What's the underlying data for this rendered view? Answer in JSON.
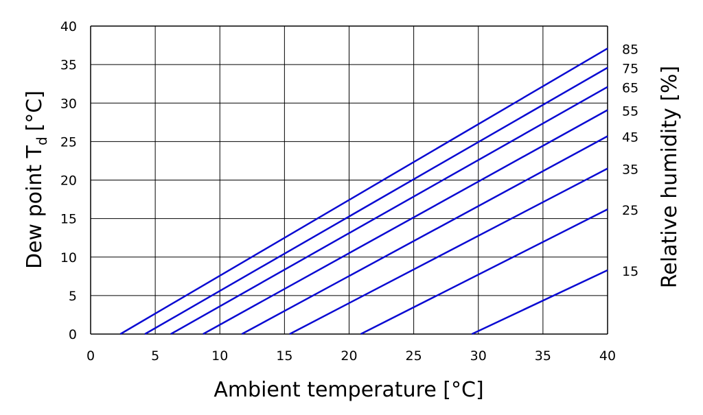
{
  "chart_data": {
    "type": "line",
    "title": "",
    "xlabel": "Ambient temperature [°C]",
    "ylabel": "Dew point T",
    "ylabel_subscript": "d",
    "ylabel_unit": "[°C]",
    "y2label": "Relative humidity [%]",
    "xlim": [
      0,
      40
    ],
    "ylim": [
      0,
      40
    ],
    "xticks": [
      "0",
      "5",
      "10",
      "15",
      "20",
      "25",
      "30",
      "35",
      "40"
    ],
    "yticks": [
      "0",
      "5",
      "10",
      "15",
      "20",
      "25",
      "30",
      "35",
      "40"
    ],
    "grid": true,
    "line_color": "#0a0ad2",
    "series": [
      {
        "name": "85",
        "x": [
          2.3,
          40
        ],
        "y": [
          0,
          37.1
        ]
      },
      {
        "name": "75",
        "x": [
          4.2,
          40
        ],
        "y": [
          0,
          34.6
        ]
      },
      {
        "name": "65",
        "x": [
          6.2,
          40
        ],
        "y": [
          0,
          32.1
        ]
      },
      {
        "name": "55",
        "x": [
          8.7,
          40
        ],
        "y": [
          0,
          29.1
        ]
      },
      {
        "name": "45",
        "x": [
          11.7,
          40
        ],
        "y": [
          0,
          25.7
        ]
      },
      {
        "name": "35",
        "x": [
          15.4,
          40
        ],
        "y": [
          0,
          21.5
        ]
      },
      {
        "name": "25",
        "x": [
          20.9,
          40
        ],
        "y": [
          0,
          16.2
        ]
      },
      {
        "name": "15",
        "x": [
          29.5,
          40
        ],
        "y": [
          0,
          8.3
        ]
      }
    ]
  }
}
